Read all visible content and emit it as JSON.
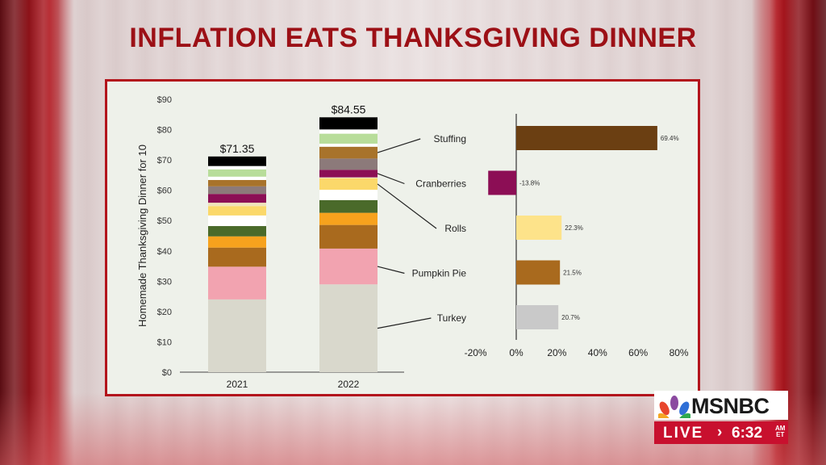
{
  "headline": "INFLATION EATS THANKSGIVING DINNER",
  "network": "MSNBC",
  "live_label": "LIVE",
  "live_arrow": "›",
  "time": "6:32",
  "time_am": "AM",
  "time_zone": "ET",
  "colors": {
    "headline": "#9c1016",
    "panel_border": "#b3141c",
    "live_bar": "#c8102e"
  },
  "chart_data": [
    {
      "type": "bar",
      "stacked": true,
      "ylabel": "Homemade Thanksgiving Dinner for 10",
      "xlabel": "",
      "ylim": [
        0,
        90
      ],
      "y_ticks": [
        "$0",
        "$10",
        "$20",
        "$30",
        "$40",
        "$50",
        "$60",
        "$70",
        "$80",
        "$90"
      ],
      "categories": [
        "2021",
        "2022"
      ],
      "totals": [
        "$71.35",
        "$84.55"
      ],
      "segments": [
        {
          "label": "Turkey",
          "color": "#d9d8cc",
          "values": [
            23.99,
            28.96
          ]
        },
        {
          "label": "Pumpkin Pie",
          "color": "#f2a3b0",
          "values": [
            10.8,
            11.8
          ]
        },
        {
          "label": "",
          "color": "#a96a1e",
          "values": [
            6.3,
            7.8
          ]
        },
        {
          "label": "",
          "color": "#f7a21d",
          "values": [
            3.7,
            4.0
          ]
        },
        {
          "label": "",
          "color": "#4a6a2a",
          "values": [
            3.4,
            4.2
          ]
        },
        {
          "label": "",
          "color": "#ffffff",
          "values": [
            3.5,
            3.4
          ]
        },
        {
          "label": "Rolls",
          "color": "#fbd86a",
          "values": [
            3.1,
            3.8
          ]
        },
        {
          "label": "",
          "color": "#efe4bc",
          "values": [
            1.1,
            0.3
          ]
        },
        {
          "label": "Cranberries",
          "color": "#8c0e55",
          "values": [
            2.9,
            2.5
          ]
        },
        {
          "label": "",
          "color": "#8c7a7a",
          "values": [
            2.5,
            3.7
          ]
        },
        {
          "label": "Stuffing",
          "color": "#a8732b",
          "values": [
            2.1,
            3.9
          ]
        },
        {
          "label": "",
          "color": "#ffffff",
          "values": [
            1.1,
            1.0
          ]
        },
        {
          "label": "",
          "color": "#b8dd9a",
          "values": [
            2.4,
            3.3
          ]
        },
        {
          "label": "",
          "color": "#ffffff",
          "values": [
            1.1,
            1.4
          ]
        },
        {
          "label": "",
          "color": "#000000",
          "values": [
            3.15,
            4.0
          ]
        }
      ]
    },
    {
      "type": "bar",
      "orientation": "horizontal",
      "xlim": [
        -20,
        80
      ],
      "x_ticks": [
        "-20%",
        "0%",
        "20%",
        "40%",
        "60%",
        "80%"
      ],
      "categories": [
        "Stuffing",
        "Cranberries",
        "Rolls",
        "Pumpkin Pie",
        "Turkey"
      ],
      "values": [
        69.4,
        -13.8,
        22.3,
        21.5,
        20.7
      ],
      "value_labels": [
        "69.4%",
        "-13.8%",
        "22.3%",
        "21.5%",
        "20.7%"
      ],
      "colors": [
        "#6b3f12",
        "#8c0e55",
        "#fde38a",
        "#a96a1e",
        "#c9c9c9"
      ]
    }
  ]
}
